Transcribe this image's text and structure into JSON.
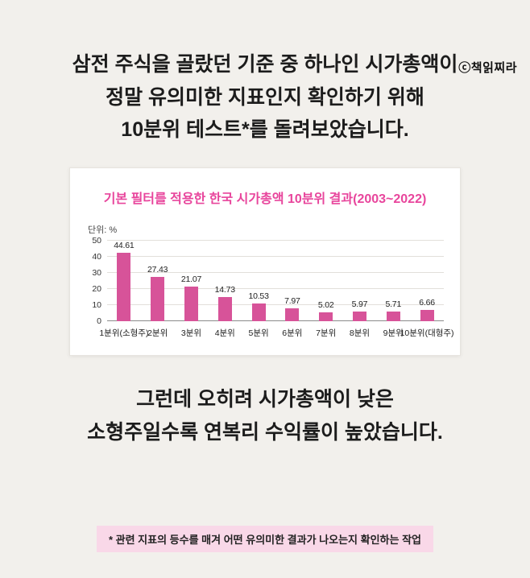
{
  "watermark": "ⓒ책읽찌라",
  "heading": {
    "line1": "삼전 주식을 골랐던 기준 중 하나인 시가총액이",
    "line2": "정말 유의미한 지표인지 확인하기 위해",
    "line3": "10분위 테스트*를 돌려보았습니다."
  },
  "chart_data": {
    "type": "bar",
    "title": "기본 필터를 적용한 한국 시가총액 10분위 결과(2003~2022)",
    "unit_label": "단위: %",
    "categories": [
      "1분위(소형주)",
      "2분위",
      "3분위",
      "4분위",
      "5분위",
      "6분위",
      "7분위",
      "8분위",
      "9분위",
      "10분위(대형주)"
    ],
    "values": [
      44.61,
      27.43,
      21.07,
      14.73,
      10.53,
      7.97,
      5.02,
      5.97,
      5.71,
      6.66
    ],
    "xlabel": "",
    "ylabel": "",
    "ylim": [
      0,
      50
    ],
    "yticks": [
      0,
      10,
      20,
      30,
      40,
      50
    ],
    "grid": true,
    "legend": "none",
    "bar_color": "#d75399"
  },
  "conclusion": {
    "line1": "그런데 오히려 시가총액이 낮은",
    "line2": "소형주일수록 연복리 수익률이 높았습니다."
  },
  "footnote": "* 관련 지표의 등수를 매겨 어떤 유의미한 결과가 나오는지 확인하는 작업",
  "colors": {
    "background": "#f2f0ec",
    "card_background": "#ffffff",
    "accent_pink": "#e8459c",
    "bar_pink": "#d75399",
    "footnote_background": "#f9d8e8",
    "text": "#1c1c1c"
  }
}
